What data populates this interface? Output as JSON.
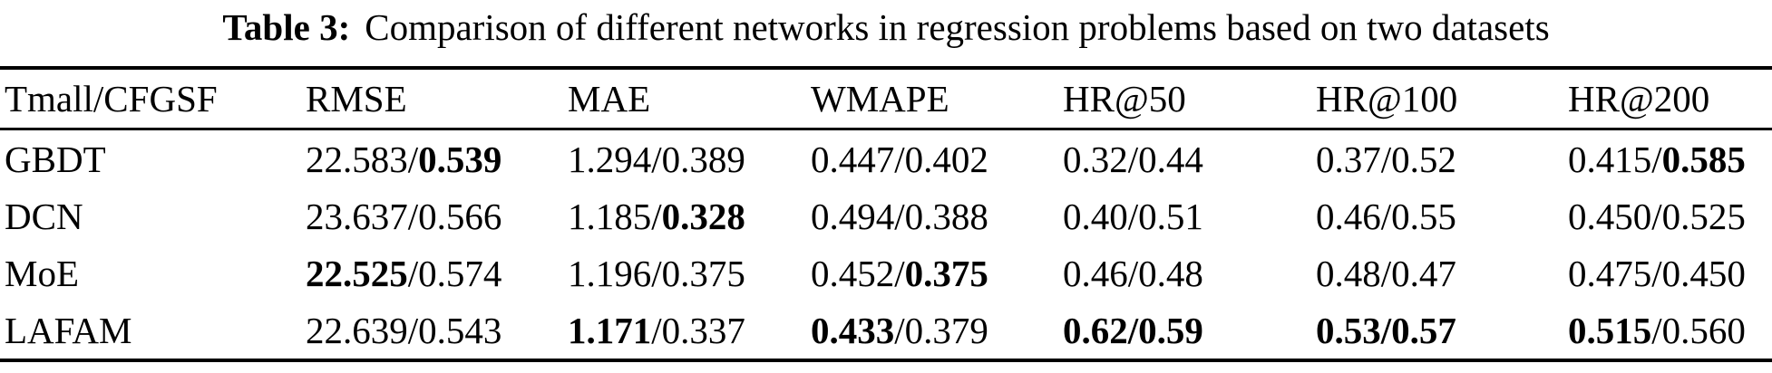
{
  "caption": {
    "label": "Table 3:",
    "text": "Comparison of different networks in regression problems based on two datasets"
  },
  "colors": {
    "text": "#000000",
    "background": "#ffffff",
    "rule": "#000000"
  },
  "table": {
    "separator": "/",
    "columns": [
      "Tmall/CFGSF",
      "RMSE",
      "MAE",
      "WMAPE",
      "HR@50",
      "HR@100",
      "HR@200"
    ],
    "rows": [
      {
        "model": "GBDT",
        "cells": [
          {
            "v1": "22.583",
            "b1": false,
            "v2": "0.539",
            "b2": true,
            "bs": false
          },
          {
            "v1": "1.294",
            "b1": false,
            "v2": "0.389",
            "b2": false,
            "bs": false
          },
          {
            "v1": "0.447",
            "b1": false,
            "v2": "0.402",
            "b2": false,
            "bs": false
          },
          {
            "v1": "0.32",
            "b1": false,
            "v2": "0.44",
            "b2": false,
            "bs": false
          },
          {
            "v1": "0.37",
            "b1": false,
            "v2": "0.52",
            "b2": false,
            "bs": false
          },
          {
            "v1": "0.415",
            "b1": false,
            "v2": "0.585",
            "b2": true,
            "bs": false
          }
        ]
      },
      {
        "model": "DCN",
        "cells": [
          {
            "v1": "23.637",
            "b1": false,
            "v2": "0.566",
            "b2": false,
            "bs": false
          },
          {
            "v1": "1.185",
            "b1": false,
            "v2": "0.328",
            "b2": true,
            "bs": false
          },
          {
            "v1": "0.494",
            "b1": false,
            "v2": "0.388",
            "b2": false,
            "bs": false
          },
          {
            "v1": "0.40",
            "b1": false,
            "v2": "0.51",
            "b2": false,
            "bs": false
          },
          {
            "v1": "0.46",
            "b1": false,
            "v2": "0.55",
            "b2": false,
            "bs": false
          },
          {
            "v1": "0.450",
            "b1": false,
            "v2": "0.525",
            "b2": false,
            "bs": false
          }
        ]
      },
      {
        "model": "MoE",
        "cells": [
          {
            "v1": "22.525",
            "b1": true,
            "v2": "0.574",
            "b2": false,
            "bs": false
          },
          {
            "v1": "1.196",
            "b1": false,
            "v2": "0.375",
            "b2": false,
            "bs": false
          },
          {
            "v1": "0.452",
            "b1": false,
            "v2": "0.375",
            "b2": true,
            "bs": false
          },
          {
            "v1": "0.46",
            "b1": false,
            "v2": "0.48",
            "b2": false,
            "bs": false
          },
          {
            "v1": "0.48",
            "b1": false,
            "v2": "0.47",
            "b2": false,
            "bs": false
          },
          {
            "v1": "0.475",
            "b1": false,
            "v2": "0.450",
            "b2": false,
            "bs": false
          }
        ]
      },
      {
        "model": "LAFAM",
        "cells": [
          {
            "v1": "22.639",
            "b1": false,
            "v2": "0.543",
            "b2": false,
            "bs": false
          },
          {
            "v1": "1.171",
            "b1": true,
            "v2": "0.337",
            "b2": false,
            "bs": false
          },
          {
            "v1": "0.433",
            "b1": true,
            "v2": "0.379",
            "b2": false,
            "bs": false
          },
          {
            "v1": "0.62",
            "b1": true,
            "v2": "0.59",
            "b2": true,
            "bs": true
          },
          {
            "v1": "0.53",
            "b1": true,
            "v2": "0.57",
            "b2": true,
            "bs": true
          },
          {
            "v1": "0.515",
            "b1": true,
            "v2": "0.560",
            "b2": false,
            "bs": false
          }
        ]
      }
    ]
  }
}
